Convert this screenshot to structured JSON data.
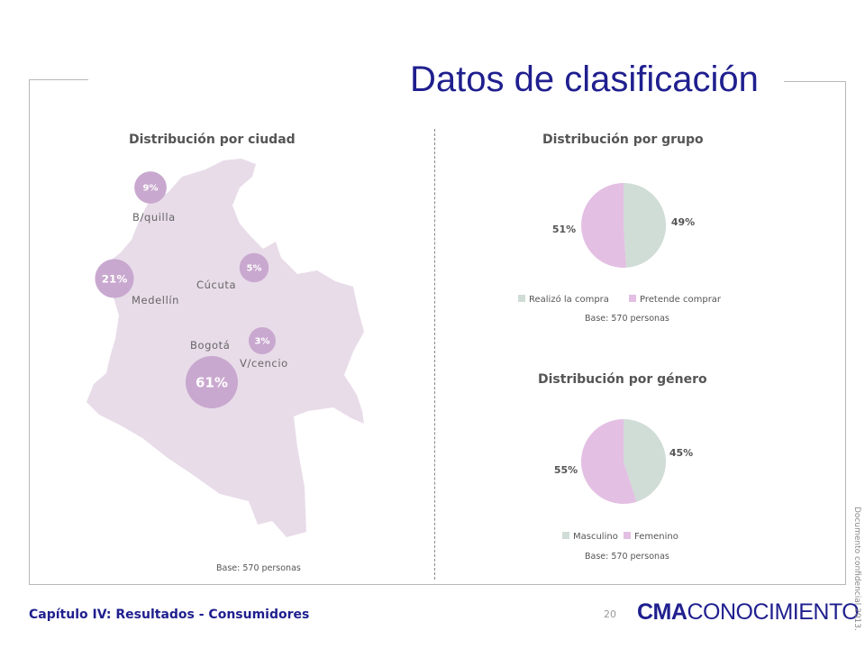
{
  "page": {
    "title": "Datos de clasificación",
    "footer": "Capítulo IV: Resultados - Consumidores",
    "page_number": "20",
    "logo_bold": "CMA",
    "logo_rest": "CONOCIMIENTO",
    "confidential": "Documento confidencial 2013."
  },
  "colors": {
    "title": "#1f1f8f",
    "map_fill": "#e8dce9",
    "bubble": "#c9a8cf",
    "slice_gray": "#d0dcd6",
    "slice_pink": "#e3bfe3"
  },
  "chart_data": [
    {
      "type": "bubble-map",
      "title": "Distribución por ciudad",
      "base": "Base: 570 personas",
      "points": [
        {
          "city": "B/quilla",
          "value": 9,
          "label": "9%"
        },
        {
          "city": "Medellín",
          "value": 21,
          "label": "21%"
        },
        {
          "city": "Cúcuta",
          "value": 5,
          "label": "5%"
        },
        {
          "city": "V/cencio",
          "value": 3,
          "label": "3%"
        },
        {
          "city": "Bogotá",
          "value": 61,
          "label": "61%"
        }
      ]
    },
    {
      "type": "pie",
      "title": "Distribución por grupo",
      "base": "Base: 570 personas",
      "slices": [
        {
          "name": "Realizó la compra",
          "value": 49,
          "label": "49%",
          "color": "#d0dcd6"
        },
        {
          "name": "Pretende comprar",
          "value": 51,
          "label": "51%",
          "color": "#e3bfe3"
        }
      ],
      "legend": "bottom"
    },
    {
      "type": "pie",
      "title": "Distribución por género",
      "base": "Base: 570 personas",
      "slices": [
        {
          "name": "Masculino",
          "value": 45,
          "label": "45%",
          "color": "#d0dcd6"
        },
        {
          "name": "Femenino",
          "value": 55,
          "label": "55%",
          "color": "#e3bfe3"
        }
      ],
      "legend": "bottom"
    }
  ]
}
